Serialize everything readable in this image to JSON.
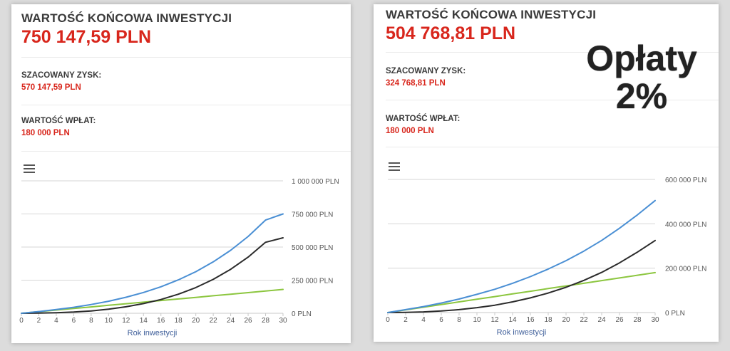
{
  "panels": [
    {
      "title": "WARTOŚĆ KOŃCOWA INWESTYCJI",
      "final_value": "750 147,59 PLN",
      "profit_label": "SZACOWANY ZYSK:",
      "profit_value": "570 147,59 PLN",
      "deposits_label": "WARTOŚĆ WPŁAT:",
      "deposits_value": "180 000 PLN",
      "menu_icon": "hamburger-menu-icon"
    },
    {
      "title": "WARTOŚĆ KOŃCOWA INWESTYCJI",
      "final_value": "504 768,81 PLN",
      "profit_label": "SZACOWANY ZYSK:",
      "profit_value": "324 768,81 PLN",
      "deposits_label": "WARTOŚĆ WPŁAT:",
      "deposits_value": "180 000 PLN",
      "menu_icon": "hamburger-menu-icon",
      "overlay_text": [
        "Opłaty",
        "2%"
      ]
    }
  ],
  "colors": {
    "title": "#3a3a3a",
    "accent_red": "#d8261c",
    "series_value": "#4a8fd4",
    "series_profit": "#2b2b2b",
    "series_deposits": "#8cc63f",
    "xlabel": "#3f5f9a"
  },
  "chart_data": [
    {
      "type": "line",
      "xlabel": "Rok inwestycji",
      "ylabel": "",
      "x_ticks": [
        0,
        2,
        4,
        6,
        8,
        10,
        12,
        14,
        16,
        18,
        20,
        22,
        24,
        26,
        28,
        30
      ],
      "y_ticks": [
        0,
        250000,
        500000,
        750000,
        1000000
      ],
      "y_tick_labels": [
        "0 PLN",
        "250 000 PLN",
        "500 000 PLN",
        "750 000 PLN",
        "1 000 000 PLN"
      ],
      "xlim": [
        0,
        30
      ],
      "ylim": [
        0,
        1000000
      ],
      "grid": true,
      "series": [
        {
          "key": "value",
          "x": [
            0,
            2,
            4,
            6,
            8,
            10,
            12,
            14,
            16,
            18,
            20,
            22,
            24,
            26,
            28,
            30
          ],
          "values": [
            0,
            13000,
            28000,
            45000,
            66000,
            91000,
            121000,
            157000,
            200000,
            252000,
            314000,
            388000,
            476000,
            580000,
            704000,
            750148
          ]
        },
        {
          "key": "profit",
          "x": [
            0,
            2,
            4,
            6,
            8,
            10,
            12,
            14,
            16,
            18,
            20,
            22,
            24,
            26,
            28,
            30
          ],
          "values": [
            0,
            1000,
            4000,
            9000,
            18000,
            31000,
            49000,
            73000,
            104000,
            144000,
            194000,
            256000,
            332000,
            424000,
            536000,
            570148
          ]
        },
        {
          "key": "deposits",
          "x": [
            0,
            2,
            4,
            6,
            8,
            10,
            12,
            14,
            16,
            18,
            20,
            22,
            24,
            26,
            28,
            30
          ],
          "values": [
            0,
            12000,
            24000,
            36000,
            48000,
            60000,
            72000,
            84000,
            96000,
            108000,
            120000,
            132000,
            144000,
            156000,
            168000,
            180000
          ]
        }
      ]
    },
    {
      "type": "line",
      "xlabel": "Rok inwestycji",
      "ylabel": "",
      "x_ticks": [
        0,
        2,
        4,
        6,
        8,
        10,
        12,
        14,
        16,
        18,
        20,
        22,
        24,
        26,
        28,
        30
      ],
      "y_ticks": [
        0,
        200000,
        400000,
        600000
      ],
      "y_tick_labels": [
        "0 PLN",
        "200 000 PLN",
        "400 000 PLN",
        "600 000 PLN"
      ],
      "xlim": [
        0,
        30
      ],
      "ylim": [
        0,
        600000
      ],
      "grid": true,
      "series": [
        {
          "key": "value",
          "x": [
            0,
            2,
            4,
            6,
            8,
            10,
            12,
            14,
            16,
            18,
            20,
            22,
            24,
            26,
            28,
            30
          ],
          "values": [
            0,
            13000,
            27000,
            43000,
            61000,
            82000,
            105000,
            132000,
            162000,
            196000,
            234000,
            277000,
            325000,
            380000,
            440000,
            504769
          ]
        },
        {
          "key": "profit",
          "x": [
            0,
            2,
            4,
            6,
            8,
            10,
            12,
            14,
            16,
            18,
            20,
            22,
            24,
            26,
            28,
            30
          ],
          "values": [
            0,
            1000,
            3000,
            7000,
            13000,
            22000,
            33000,
            48000,
            66000,
            88000,
            114000,
            145000,
            181000,
            224000,
            272000,
            324769
          ]
        },
        {
          "key": "deposits",
          "x": [
            0,
            2,
            4,
            6,
            8,
            10,
            12,
            14,
            16,
            18,
            20,
            22,
            24,
            26,
            28,
            30
          ],
          "values": [
            0,
            12000,
            24000,
            36000,
            48000,
            60000,
            72000,
            84000,
            96000,
            108000,
            120000,
            132000,
            144000,
            156000,
            168000,
            180000
          ]
        }
      ]
    }
  ]
}
